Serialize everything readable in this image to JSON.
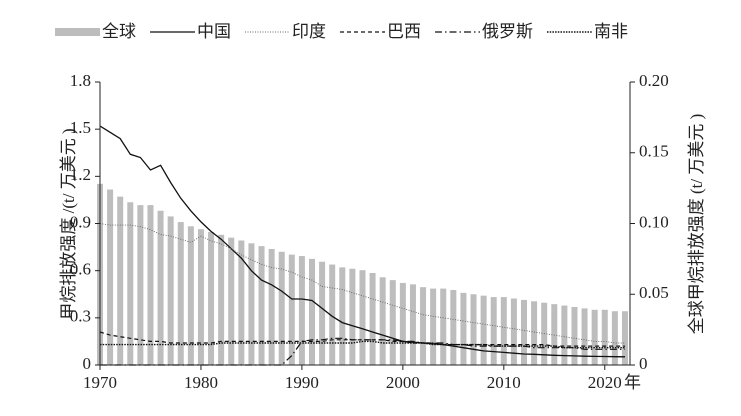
{
  "chart_data": {
    "type": "bar-line",
    "ylabel": "甲烷排放强度 /(t/ 万美元 )",
    "y2label": "全球甲烷排放强度 (t/ 万美元 )",
    "xlabel": "年",
    "x": [
      1970,
      1971,
      1972,
      1973,
      1974,
      1975,
      1976,
      1977,
      1978,
      1979,
      1980,
      1981,
      1982,
      1983,
      1984,
      1985,
      1986,
      1987,
      1988,
      1989,
      1990,
      1991,
      1992,
      1993,
      1994,
      1995,
      1996,
      1997,
      1998,
      1999,
      2000,
      2001,
      2002,
      2003,
      2004,
      2005,
      2006,
      2007,
      2008,
      2009,
      2010,
      2011,
      2012,
      2013,
      2014,
      2015,
      2016,
      2017,
      2018,
      2019,
      2020,
      2021,
      2022
    ],
    "xlim": [
      1970,
      2022.5
    ],
    "xticks": [
      1970,
      1980,
      1990,
      2000,
      2010,
      2020
    ],
    "ylim": [
      0,
      1.8
    ],
    "yticks": [
      0,
      0.3,
      0.6,
      0.9,
      1.2,
      1.5,
      1.8
    ],
    "y2lim": [
      0,
      0.2
    ],
    "y2ticks": [
      0,
      0.05,
      {
        "value": 0.1,
        "label": "0.10"
      },
      0.15,
      {
        "value": 0.2,
        "label": "0.20"
      }
    ],
    "series": [
      {
        "name": "全球",
        "type": "bar",
        "axis": "y2",
        "color": "#bdbdbd",
        "values": [
          0.128,
          0.124,
          0.119,
          0.115,
          0.113,
          0.113,
          0.109,
          0.105,
          0.101,
          0.098,
          0.096,
          0.094,
          0.092,
          0.09,
          0.088,
          0.086,
          0.084,
          0.082,
          0.08,
          0.078,
          0.077,
          0.075,
          0.073,
          0.071,
          0.069,
          0.068,
          0.067,
          0.065,
          0.062,
          0.06,
          0.058,
          0.057,
          0.055,
          0.054,
          0.054,
          0.053,
          0.051,
          0.05,
          0.049,
          0.048,
          0.048,
          0.047,
          0.046,
          0.045,
          0.044,
          0.043,
          0.042,
          0.041,
          0.04,
          0.039,
          0.039,
          0.038,
          0.038
        ]
      },
      {
        "name": "中国",
        "type": "line",
        "dash": "solid",
        "color": "#111111",
        "values": [
          1.52,
          1.48,
          1.44,
          1.34,
          1.32,
          1.24,
          1.27,
          1.16,
          1.06,
          0.98,
          0.91,
          0.85,
          0.8,
          0.74,
          0.68,
          0.6,
          0.54,
          0.51,
          0.47,
          0.42,
          0.42,
          0.41,
          0.36,
          0.31,
          0.27,
          0.25,
          0.23,
          0.21,
          0.19,
          0.17,
          0.15,
          0.145,
          0.14,
          0.135,
          0.13,
          0.12,
          0.11,
          0.1,
          0.09,
          0.085,
          0.08,
          0.075,
          0.07,
          0.068,
          0.065,
          0.062,
          0.06,
          0.058,
          0.056,
          0.055,
          0.054,
          0.053,
          0.052
        ]
      },
      {
        "name": "印度",
        "type": "line",
        "dash": "dotted",
        "color": "#666666",
        "values": [
          0.9,
          0.89,
          0.89,
          0.89,
          0.88,
          0.86,
          0.83,
          0.82,
          0.8,
          0.78,
          0.82,
          0.79,
          0.77,
          0.74,
          0.7,
          0.67,
          0.64,
          0.62,
          0.61,
          0.59,
          0.56,
          0.54,
          0.5,
          0.49,
          0.48,
          0.46,
          0.44,
          0.42,
          0.4,
          0.38,
          0.36,
          0.34,
          0.32,
          0.31,
          0.3,
          0.29,
          0.28,
          0.27,
          0.26,
          0.25,
          0.24,
          0.23,
          0.22,
          0.21,
          0.2,
          0.19,
          0.18,
          0.17,
          0.16,
          0.15,
          0.15,
          0.14,
          0.14
        ]
      },
      {
        "name": "巴西",
        "type": "line",
        "dash": "dashed",
        "color": "#111111",
        "values": [
          0.21,
          0.19,
          0.18,
          0.17,
          0.16,
          0.15,
          0.15,
          0.14,
          0.14,
          0.14,
          0.14,
          0.14,
          0.15,
          0.15,
          0.15,
          0.15,
          0.15,
          0.15,
          0.15,
          0.15,
          0.15,
          0.15,
          0.15,
          0.16,
          0.16,
          0.16,
          0.16,
          0.16,
          0.16,
          0.15,
          0.15,
          0.14,
          0.14,
          0.14,
          0.13,
          0.13,
          0.13,
          0.13,
          0.13,
          0.13,
          0.13,
          0.13,
          0.13,
          0.13,
          0.13,
          0.12,
          0.12,
          0.12,
          0.12,
          0.12,
          0.12,
          0.12,
          0.12
        ]
      },
      {
        "name": "俄罗斯",
        "type": "line",
        "dash": "dashdot",
        "color": "#111111",
        "values": [
          0,
          0,
          0,
          0,
          0,
          0,
          0,
          0,
          0,
          0,
          0,
          0,
          0,
          0,
          0,
          0,
          0,
          0,
          0,
          0.06,
          0.15,
          0.16,
          0.16,
          0.17,
          0.17,
          0.16,
          0.16,
          0.16,
          0.16,
          0.16,
          0.15,
          0.15,
          0.14,
          0.14,
          0.14,
          0.13,
          0.13,
          0.12,
          0.12,
          0.12,
          0.12,
          0.12,
          0.12,
          0.11,
          0.11,
          0.11,
          0.11,
          0.11,
          0.1,
          0.1,
          0.1,
          0.1,
          0.1
        ]
      },
      {
        "name": "南非",
        "type": "line",
        "dash": "densedot",
        "color": "#111111",
        "values": [
          0.13,
          0.13,
          0.13,
          0.13,
          0.13,
          0.13,
          0.13,
          0.13,
          0.13,
          0.13,
          0.13,
          0.13,
          0.14,
          0.14,
          0.14,
          0.14,
          0.14,
          0.14,
          0.14,
          0.14,
          0.14,
          0.14,
          0.14,
          0.14,
          0.14,
          0.14,
          0.15,
          0.15,
          0.14,
          0.14,
          0.14,
          0.14,
          0.14,
          0.13,
          0.13,
          0.13,
          0.13,
          0.13,
          0.13,
          0.12,
          0.12,
          0.12,
          0.12,
          0.12,
          0.12,
          0.12,
          0.11,
          0.11,
          0.11,
          0.11,
          0.11,
          0.11,
          0.11
        ]
      }
    ]
  }
}
